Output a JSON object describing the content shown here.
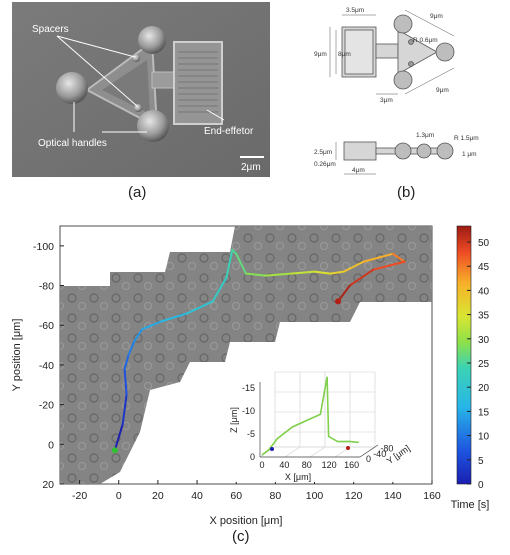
{
  "panel_a": {
    "label": "(a)",
    "annotations": {
      "spacers": "Spacers",
      "optical_handles": "Optical handles",
      "end_effector": "End-effetor",
      "scale": "2μm"
    }
  },
  "panel_b": {
    "label": "(b)",
    "dimensions": [
      "3.5μm",
      "9μm",
      "9μm",
      "8μm",
      "R 0.6μm",
      "9μm",
      "3μm",
      "2.5μm",
      "0.26μm",
      "4μm",
      "1.3μm",
      "R 1.5μm",
      "1 μm"
    ]
  },
  "panel_c": {
    "label": "(c)"
  },
  "chart_data": [
    {
      "type": "line",
      "title": "",
      "xlabel": "X position [μm]",
      "ylabel": "Y position [μm]",
      "xlim": [
        -30,
        160
      ],
      "ylim": [
        20,
        -110
      ],
      "xticks": [
        "-20",
        "0",
        "20",
        "40",
        "60",
        "80",
        "100",
        "120",
        "140",
        "160"
      ],
      "yticks": [
        "-100",
        "-80",
        "-60",
        "-40",
        "-20",
        "0",
        "20"
      ],
      "grid": false,
      "background": "microscope-image",
      "series": [
        {
          "color_by": "time",
          "x": [
            -2,
            2,
            4,
            3,
            5,
            8,
            12,
            22,
            35,
            48,
            55,
            58,
            60,
            65,
            75,
            88,
            100,
            108,
            115,
            125,
            140,
            146,
            130,
            118,
            112
          ],
          "y": [
            3,
            -10,
            -25,
            -38,
            -45,
            -52,
            -58,
            -62,
            -66,
            -72,
            -84,
            -98,
            -96,
            -86,
            -85,
            -86,
            -87,
            -86,
            -87,
            -92,
            -96,
            -92,
            -88,
            -80,
            -72
          ],
          "t": [
            0,
            3,
            6,
            8,
            10,
            12,
            14,
            16,
            18,
            20,
            22,
            24,
            25,
            27,
            29,
            31,
            33,
            35,
            37,
            39,
            42,
            45,
            47,
            49,
            51
          ]
        }
      ]
    },
    {
      "type": "line",
      "title": "",
      "xlabel": "X [μm]",
      "ylabel": "Y [μm]",
      "zlabel": "Z [μm]",
      "xticks": [
        "0",
        "40",
        "80",
        "120",
        "160"
      ],
      "yticks": [
        "0",
        "-40",
        "-80"
      ],
      "zticks": [
        "0",
        "-5",
        "-10",
        "-15"
      ],
      "series": [
        {
          "color_by": "time",
          "x": [
            0,
            10,
            20,
            40,
            60,
            80,
            90,
            92,
            110,
            130,
            150
          ],
          "y": [
            0,
            -10,
            -25,
            -50,
            -70,
            -85,
            -92,
            -94,
            -88,
            -90,
            -80
          ],
          "z": [
            0,
            -1,
            -3,
            -5,
            -6,
            -7,
            -15,
            -2,
            -1,
            -1,
            -1
          ]
        }
      ]
    },
    {
      "type": "colorbar",
      "label": "Time [s]",
      "range": [
        0,
        50
      ],
      "ticks": [
        "50",
        "45",
        "40",
        "35",
        "30",
        "25",
        "20",
        "15",
        "10",
        "5",
        "0"
      ],
      "colormap": "jet"
    }
  ]
}
